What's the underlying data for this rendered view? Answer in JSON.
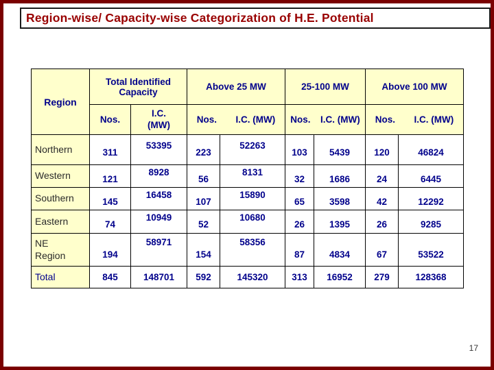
{
  "slide": {
    "title": "Region-wise/ Capacity-wise Categorization of H.E. Potential",
    "page_number": "17"
  },
  "colors": {
    "slide_border": "#7a0000",
    "title_red": "#990000",
    "header_cream": "#ffffcc",
    "value_navy": "#00008b",
    "cell_border": "#000000"
  },
  "table": {
    "header": {
      "region": "Region",
      "total_identified": "Total Identified Capacity",
      "above_25": "Above 25 MW",
      "mw_25_100": "25-100 MW",
      "above_100": "Above 100 MW",
      "nos": "Nos.",
      "ic_stacked": "I.C.\n(MW)",
      "ic": "I.C. (MW)"
    },
    "rows": [
      {
        "label": "Northern",
        "values": [
          "311",
          "53395",
          "223",
          "52263",
          "103",
          "5439",
          "120",
          "46824"
        ]
      },
      {
        "label": "Western",
        "values": [
          "121",
          "8928",
          "56",
          "8131",
          "32",
          "1686",
          "24",
          "6445"
        ]
      },
      {
        "label": "Southern",
        "values": [
          "145",
          "16458",
          "107",
          "15890",
          "65",
          "3598",
          "42",
          "12292"
        ]
      },
      {
        "label": "Eastern",
        "values": [
          "74",
          "10949",
          "52",
          "10680",
          "26",
          "1395",
          "26",
          "9285"
        ]
      },
      {
        "label": "NE\nRegion",
        "values": [
          "194",
          "58971",
          "154",
          "58356",
          "87",
          "4834",
          "67",
          "53522"
        ]
      },
      {
        "label": "Total",
        "values": [
          "845",
          "148701",
          "592",
          "145320",
          "313",
          "16952",
          "279",
          "128368"
        ]
      }
    ]
  }
}
